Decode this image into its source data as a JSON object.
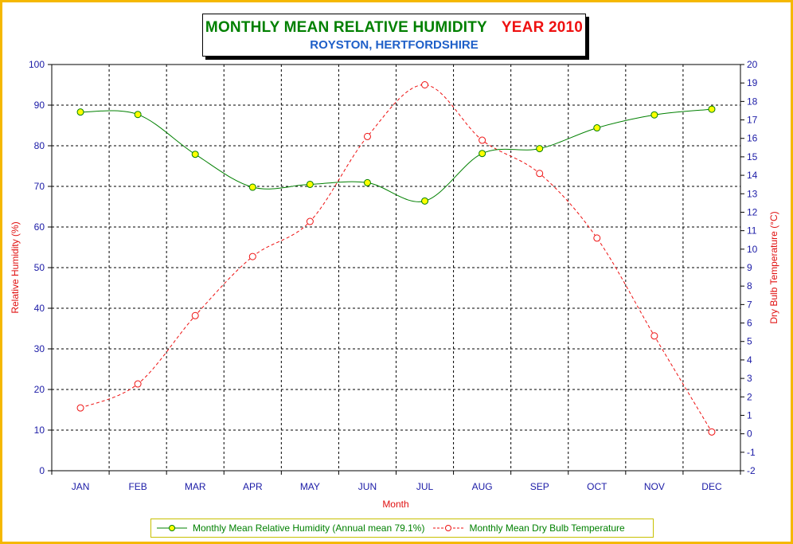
{
  "title": {
    "main": "MONTHLY MEAN RELATIVE HUMIDITY",
    "year": "YEAR 2010",
    "subtitle": "ROYSTON, HERTFORDSHIRE"
  },
  "colors": {
    "humidity_line": "#008000",
    "humidity_marker": "#ffff00",
    "temperature": "#ee1111",
    "axis_text": "#1a1aa6",
    "axis_title": "#e01010",
    "frame": "#f5b800"
  },
  "chart_data": {
    "type": "line",
    "categories": [
      "JAN",
      "FEB",
      "MAR",
      "APR",
      "MAY",
      "JUN",
      "JUL",
      "AUG",
      "SEP",
      "OCT",
      "NOV",
      "DEC"
    ],
    "xlabel": "Month",
    "ylabel": "Relative Humidity (%)",
    "y2label": "Dry Bulb Temperature (°C)",
    "ylim": [
      0,
      100
    ],
    "yticks": [
      0,
      10,
      20,
      30,
      40,
      50,
      60,
      70,
      80,
      90,
      100
    ],
    "y2lim": [
      -2,
      20
    ],
    "y2ticks": [
      -2,
      -1,
      0,
      1,
      2,
      3,
      4,
      5,
      6,
      7,
      8,
      9,
      10,
      11,
      12,
      13,
      14,
      15,
      16,
      17,
      18,
      19,
      20
    ],
    "grid": true,
    "legend_position": "bottom",
    "series": [
      {
        "name": "Monthly Mean Relative Humidity (Annual mean 79.1%)",
        "axis": "left",
        "style": "solid",
        "marker": "filled-circle",
        "values": [
          88.3,
          87.7,
          77.9,
          69.8,
          70.5,
          70.9,
          66.4,
          78.1,
          79.3,
          84.4,
          87.6,
          89.0
        ]
      },
      {
        "name": "Monthly Mean Dry Bulb Temperature",
        "axis": "right",
        "style": "dashed",
        "marker": "open-circle",
        "values": [
          1.4,
          2.7,
          6.4,
          9.6,
          11.5,
          16.1,
          18.9,
          15.9,
          14.1,
          10.6,
          5.3,
          0.1
        ]
      }
    ]
  }
}
